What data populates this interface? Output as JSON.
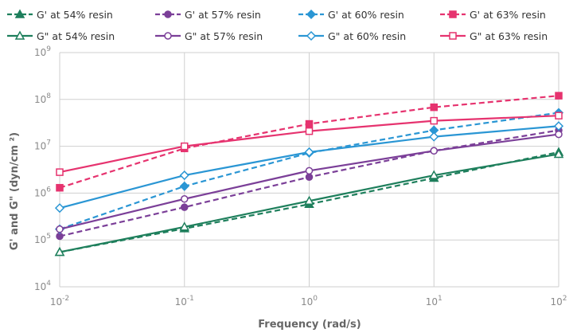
{
  "chart_data": {
    "type": "line",
    "title": "",
    "xlabel": "Frequency (rad/s)",
    "ylabel": "G' and G\" (dyn/cm ²)",
    "xscale": "log",
    "yscale": "log",
    "xlim": [
      0.01,
      100
    ],
    "ylim": [
      10000,
      1000000000
    ],
    "grid": true,
    "legend_position": "top",
    "x": [
      0.01,
      0.1,
      1,
      10,
      100
    ],
    "x_ticks": [
      {
        "base": "10",
        "exp": "-2"
      },
      {
        "base": "10",
        "exp": "-1"
      },
      {
        "base": "10",
        "exp": "0"
      },
      {
        "base": "10",
        "exp": "1"
      },
      {
        "base": "10",
        "exp": "2"
      }
    ],
    "y_ticks": [
      {
        "base": "10",
        "exp": "4"
      },
      {
        "base": "10",
        "exp": "5"
      },
      {
        "base": "10",
        "exp": "6"
      },
      {
        "base": "10",
        "exp": "7"
      },
      {
        "base": "10",
        "exp": "8"
      },
      {
        "base": "10",
        "exp": "9"
      }
    ],
    "series": [
      {
        "name": "G' at 54% resin",
        "color": "#1e7f5c",
        "dashed": true,
        "marker": "triangle",
        "filled": true,
        "values": [
          55000,
          175000,
          580000,
          2100000,
          7500000
        ]
      },
      {
        "name": "G' at 57% resin",
        "color": "#7b3f98",
        "dashed": true,
        "marker": "circle",
        "filled": true,
        "values": [
          120000,
          500000,
          2200000,
          8000000,
          22000000
        ]
      },
      {
        "name": "G' at 60% resin",
        "color": "#2a96d4",
        "dashed": true,
        "marker": "diamond",
        "filled": true,
        "values": [
          170000,
          1400000,
          7200000,
          22000000,
          52000000
        ]
      },
      {
        "name": "G' at 63% resin",
        "color": "#e6336f",
        "dashed": true,
        "marker": "square",
        "filled": true,
        "values": [
          1300000,
          9000000,
          30000000,
          68000000,
          120000000
        ]
      },
      {
        "name": "G\" at 54% resin",
        "color": "#1e7f5c",
        "dashed": false,
        "marker": "triangle",
        "filled": false,
        "values": [
          55000,
          190000,
          680000,
          2400000,
          6800000
        ]
      },
      {
        "name": "G\" at 57% resin",
        "color": "#7b3f98",
        "dashed": false,
        "marker": "circle",
        "filled": false,
        "values": [
          170000,
          750000,
          3000000,
          8000000,
          18000000
        ]
      },
      {
        "name": "G\" at 60% resin",
        "color": "#2a96d4",
        "dashed": false,
        "marker": "diamond",
        "filled": false,
        "values": [
          480000,
          2400000,
          7500000,
          16000000,
          27000000
        ]
      },
      {
        "name": "G\" at 63% resin",
        "color": "#e6336f",
        "dashed": false,
        "marker": "square",
        "filled": false,
        "values": [
          2800000,
          10000000,
          21000000,
          35000000,
          45000000
        ]
      }
    ]
  }
}
